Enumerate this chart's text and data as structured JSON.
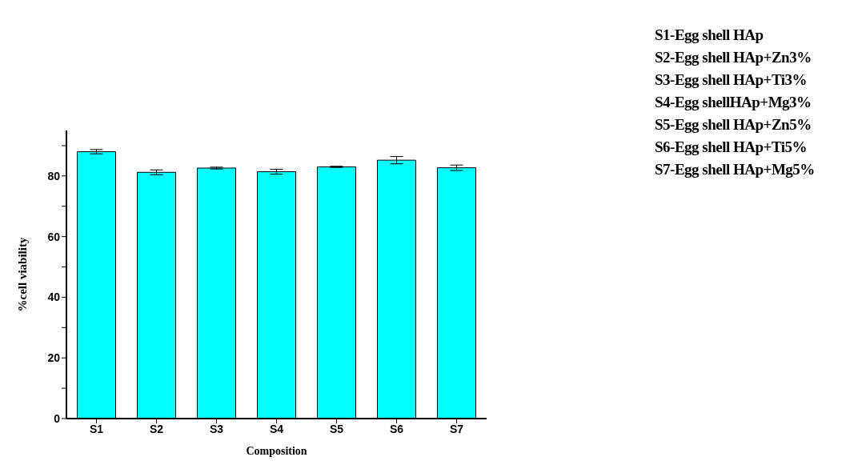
{
  "chart_data": {
    "type": "bar",
    "xlabel": "Composition",
    "ylabel": "%cell viability",
    "categories": [
      "S1",
      "S2",
      "S3",
      "S4",
      "S5",
      "S6",
      "S7"
    ],
    "values": [
      88.0,
      81.2,
      82.6,
      81.4,
      83.0,
      85.2,
      82.7
    ],
    "errors": [
      0.7,
      0.8,
      0.3,
      0.8,
      0.2,
      1.2,
      0.9
    ],
    "color": "#00ffff",
    "ylim": [
      0,
      95
    ],
    "yticks": [
      0,
      {
        "value": 10,
        "label": null
      },
      20,
      {
        "value": 30,
        "label": null
      },
      40,
      {
        "value": 50,
        "label": null
      },
      60,
      {
        "value": 70,
        "label": null
      },
      80,
      {
        "value": 90,
        "label": null
      }
    ],
    "grid": false,
    "legend": false,
    "annotations": [
      "S1-Egg shell HAp",
      "S2-Egg shell HAp+Zn3%",
      "S3-Egg shell HAp+Ti3%",
      "S4-Egg shellHAp+Mg3%",
      "S5-Egg shell HAp+Zn5%",
      "S6-Egg shell HAp+Ti5%",
      "S7-Egg shell HAp+Mg5%"
    ]
  }
}
